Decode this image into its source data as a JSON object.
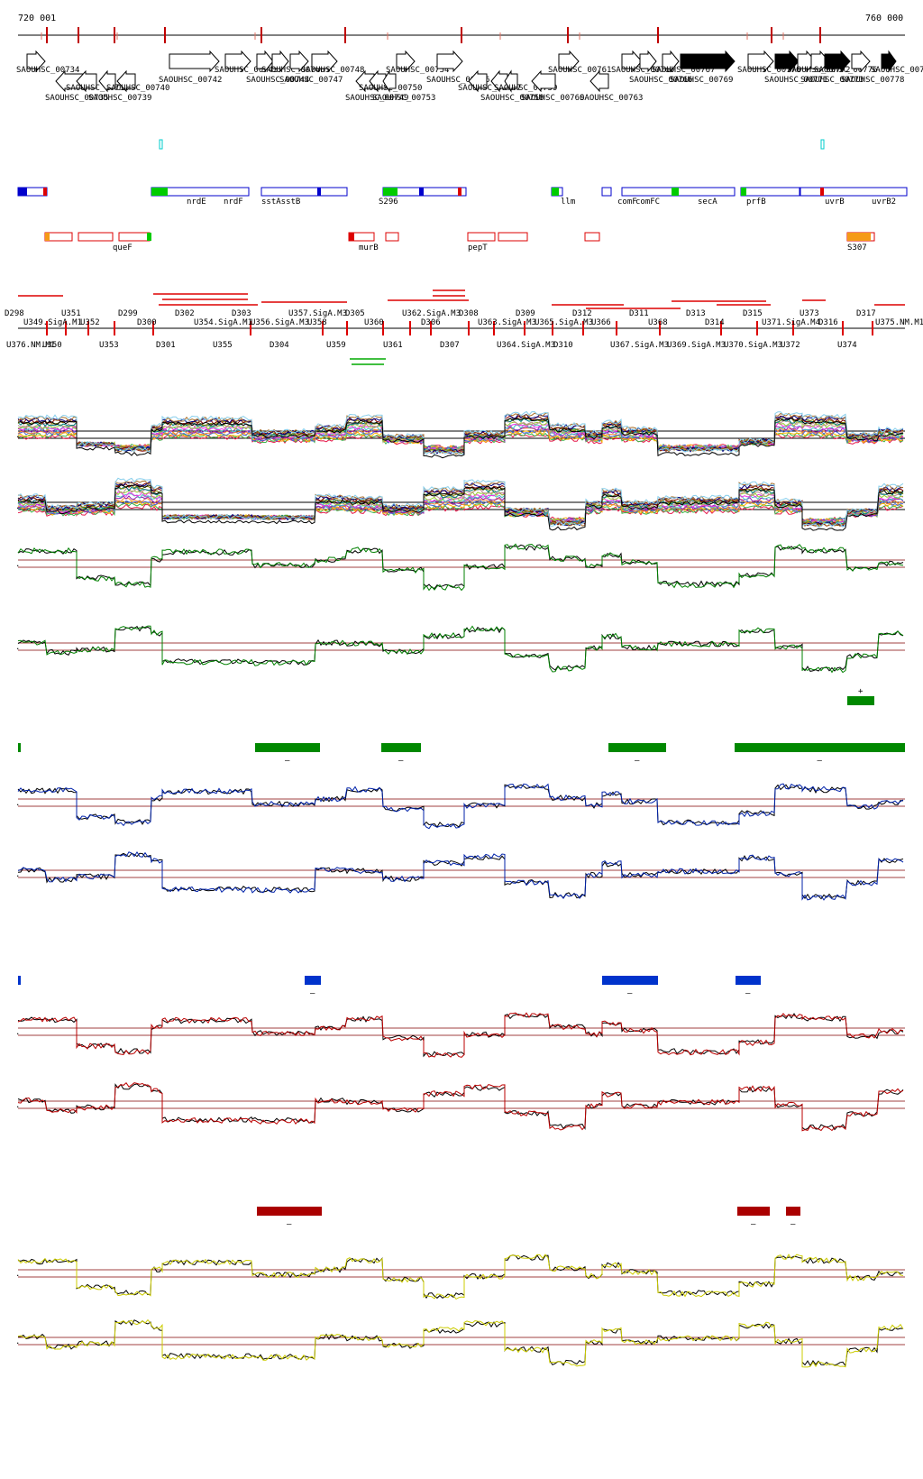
{
  "ruler": {
    "start_label": "720 001",
    "end_label": "760 000"
  },
  "genes": [
    {
      "name": "SAOUHSC_00734",
      "dir": "+",
      "fill": "white"
    },
    {
      "name": "SAOUHSC_00735",
      "dir": "-",
      "fill": "white"
    },
    {
      "name": "SAOUHSC_00738",
      "dir": "-",
      "fill": "white"
    },
    {
      "name": "SAOUHSC_00739",
      "dir": "-",
      "fill": "white"
    },
    {
      "name": "SAOUHSC_00740",
      "dir": "-",
      "fill": "white"
    },
    {
      "name": "SAOUHSC_00742",
      "dir": "+",
      "fill": "white"
    },
    {
      "name": "SAOUHSC_00743",
      "dir": "+",
      "fill": "white"
    },
    {
      "name": "SAOUHSC_00744",
      "dir": "+",
      "fill": "white"
    },
    {
      "name": "SAOUHSC_00746",
      "dir": "+",
      "fill": "white"
    },
    {
      "name": "SAOUHSC_00747",
      "dir": "+",
      "fill": "white"
    },
    {
      "name": "SAOUHSC_00748",
      "dir": "+",
      "fill": "white"
    },
    {
      "name": "SAOUHSC_00749",
      "dir": "-",
      "fill": "white"
    },
    {
      "name": "SAOUHSC_00750",
      "dir": "-",
      "fill": "white"
    },
    {
      "name": "SAOUHSC_00753",
      "dir": "-",
      "fill": "white"
    },
    {
      "name": "SAOUHSC_00754",
      "dir": "+",
      "fill": "white"
    },
    {
      "name": "SAOUHSC_00756",
      "dir": "+",
      "fill": "white"
    },
    {
      "name": "SAOUHSC_00757",
      "dir": "-",
      "fill": "white"
    },
    {
      "name": "SAOUHSC_00758",
      "dir": "-",
      "fill": "white"
    },
    {
      "name": "SAOUHSC_00759",
      "dir": "-",
      "fill": "white"
    },
    {
      "name": "SAOUHSC_00760",
      "dir": "-",
      "fill": "white"
    },
    {
      "name": "SAOUHSC_00761",
      "dir": "+",
      "fill": "white"
    },
    {
      "name": "SAOUHSC_00763",
      "dir": "-",
      "fill": "white"
    },
    {
      "name": "SAOUHSC_00765",
      "dir": "+",
      "fill": "white"
    },
    {
      "name": "SAOUHSC_00766",
      "dir": "+",
      "fill": "white"
    },
    {
      "name": "SAOUHSC_00767",
      "dir": "+",
      "fill": "white"
    },
    {
      "name": "SAOUHSC_00769",
      "dir": "+",
      "fill": "black"
    },
    {
      "name": "SAOUHSC_00770",
      "dir": "+",
      "fill": "white"
    },
    {
      "name": "SAOUHSC_00771",
      "dir": "+",
      "fill": "black"
    },
    {
      "name": "SAOUHSC_00772",
      "dir": "+",
      "fill": "white"
    },
    {
      "name": "SAOUHSC_00773",
      "dir": "+",
      "fill": "white"
    },
    {
      "name": "SAOUHSC_00776",
      "dir": "+",
      "fill": "black"
    },
    {
      "name": "SAOUHSC_00778",
      "dir": "+",
      "fill": "white"
    },
    {
      "name": "SAOUHSC_00779",
      "dir": "+",
      "fill": "black"
    }
  ],
  "annotations_row": [
    "nrdE",
    "nrdF",
    "sstAsstB",
    "S296",
    "llm",
    "comF",
    "comFC",
    "secA",
    "prfB",
    "uvrB",
    "uvrB2"
  ],
  "annotations_row2": [
    "queF",
    "murB",
    "pepT",
    "S307"
  ],
  "segments_top": [
    "D298",
    "U349.SigA.M1",
    "U350",
    "U351",
    "U352",
    "U353",
    "D299",
    "D300",
    "D301",
    "D302",
    "U354.SigA.M1",
    "U355",
    "D303",
    "U356.SigA.M3",
    "D304",
    "U357.SigA.M3",
    "U358",
    "U359",
    "D305",
    "U360",
    "U361",
    "U362.SigA.M3",
    "D306",
    "D307",
    "D308",
    "U363.SigA.M3",
    "U364.SigA.M3",
    "D309",
    "U365.SigA.M3",
    "D310",
    "D312",
    "U366",
    "U367.SigA.M3",
    "D311",
    "U368",
    "U369.SigA.M3",
    "D313",
    "D314",
    "U370.SigA.M3",
    "D315",
    "U371.SigA.M4",
    "U372",
    "U373",
    "D316",
    "U374",
    "D317",
    "U375.NM.M1",
    "U376.NM.M1"
  ],
  "colors": {
    "cds_line": "#0000cc",
    "green": "#00aa00",
    "red": "#dd0000",
    "orange": "#f59a17",
    "cyan": "#00cccc",
    "track_green": "#008000",
    "track_blue": "#0022aa",
    "track_red": "#bb0000",
    "track_yellow": "#cccc00",
    "bar_green": "#008800",
    "bar_blue": "#0033cc",
    "bar_red": "#aa0000"
  },
  "marks": {
    "plus": "+",
    "minus": "–"
  }
}
